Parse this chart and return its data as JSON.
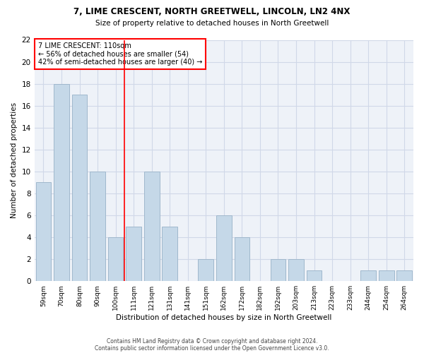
{
  "title1": "7, LIME CRESCENT, NORTH GREETWELL, LINCOLN, LN2 4NX",
  "title2": "Size of property relative to detached houses in North Greetwell",
  "xlabel": "Distribution of detached houses by size in North Greetwell",
  "ylabel": "Number of detached properties",
  "categories": [
    "59sqm",
    "70sqm",
    "80sqm",
    "90sqm",
    "100sqm",
    "111sqm",
    "121sqm",
    "131sqm",
    "141sqm",
    "151sqm",
    "162sqm",
    "172sqm",
    "182sqm",
    "192sqm",
    "203sqm",
    "213sqm",
    "223sqm",
    "233sqm",
    "244sqm",
    "254sqm",
    "264sqm"
  ],
  "values": [
    9,
    18,
    17,
    10,
    4,
    5,
    10,
    5,
    0,
    2,
    6,
    4,
    0,
    2,
    2,
    1,
    0,
    0,
    1,
    1,
    1
  ],
  "bar_color": "#c5d8e8",
  "bar_edgecolor": "#a0b8cc",
  "property_line_x": 4.5,
  "annotation_text": "7 LIME CRESCENT: 110sqm\n← 56% of detached houses are smaller (54)\n42% of semi-detached houses are larger (40) →",
  "annotation_box_color": "white",
  "annotation_box_edgecolor": "red",
  "vline_color": "red",
  "grid_color": "#d0d8e8",
  "background_color": "#eef2f8",
  "ylim": [
    0,
    22
  ],
  "yticks": [
    0,
    2,
    4,
    6,
    8,
    10,
    12,
    14,
    16,
    18,
    20,
    22
  ],
  "footer1": "Contains HM Land Registry data © Crown copyright and database right 2024.",
  "footer2": "Contains public sector information licensed under the Open Government Licence v3.0."
}
